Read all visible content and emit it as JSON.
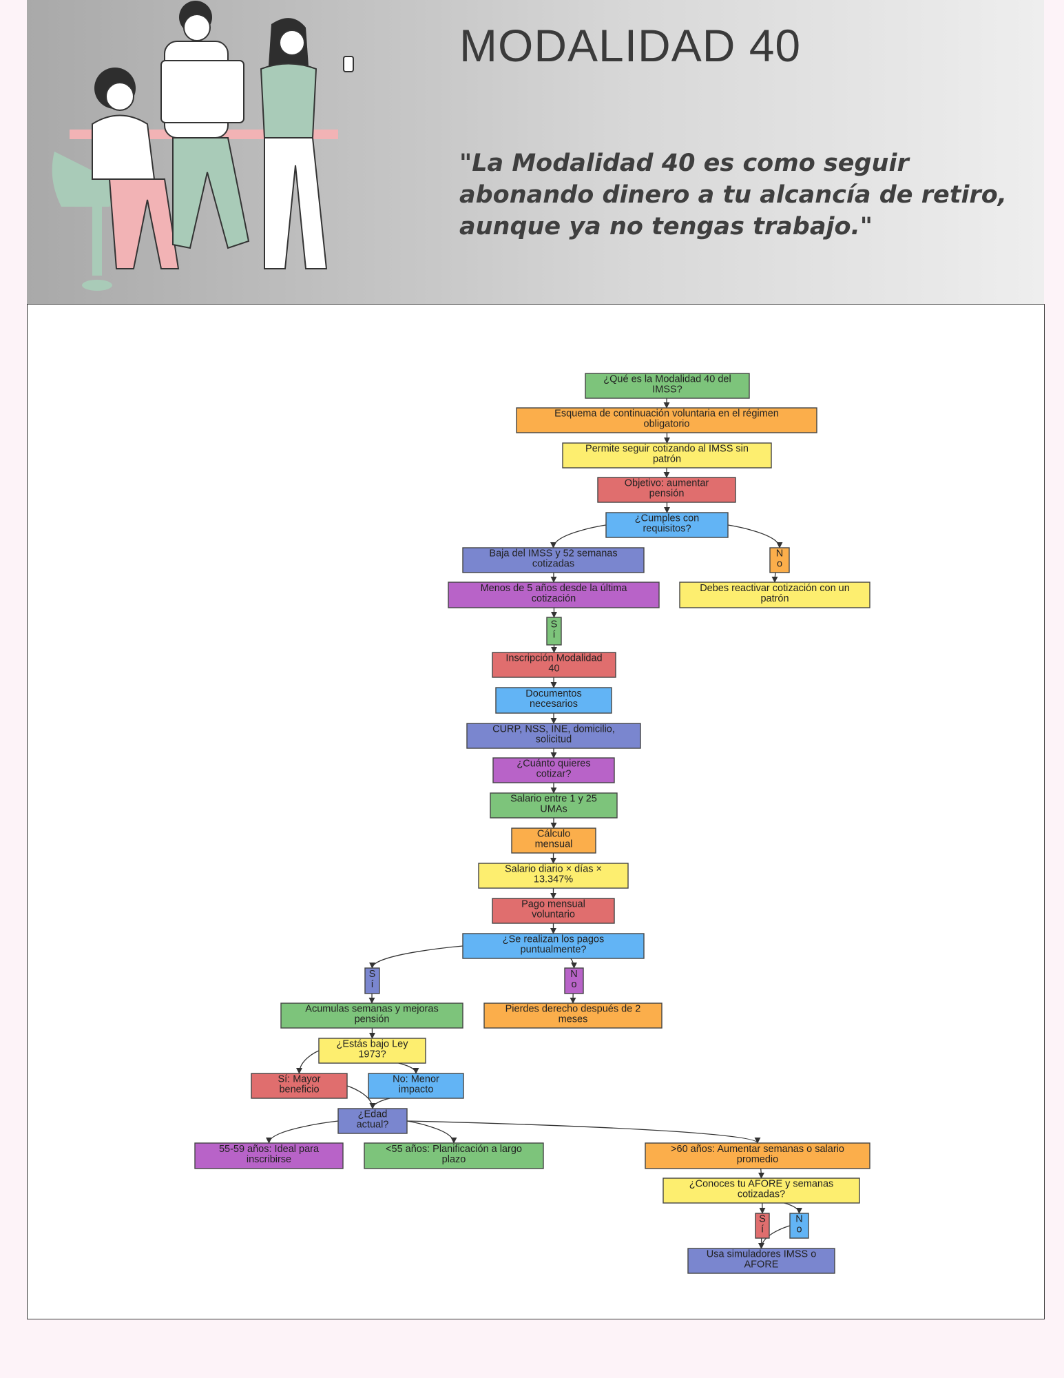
{
  "header": {
    "title": "MODALIDAD 40",
    "quote_lines": [
      "\"La Modalidad 40 es como seguir",
      "abonando dinero a tu alcancía de retiro,",
      " aunque ya no tengas trabajo.\""
    ]
  },
  "colors": {
    "green": "#7dc47b",
    "orange": "#fbae4b",
    "yellow": "#fdee6f",
    "red": "#e06e6e",
    "blue": "#62b4f5",
    "indigo": "#7a86cf",
    "purple": "#b863c8"
  },
  "diagram": {
    "nodes": [
      {
        "id": "n1",
        "color": "green",
        "lines": [
          "¿Qué es la Modalidad 40 del",
          "IMSS?"
        ]
      },
      {
        "id": "n2",
        "color": "orange",
        "lines": [
          "Esquema de continuación voluntaria en el régimen",
          "obligatorio"
        ]
      },
      {
        "id": "n3",
        "color": "yellow",
        "lines": [
          "Permite seguir cotizando al IMSS sin",
          "patrón"
        ]
      },
      {
        "id": "n4",
        "color": "red",
        "lines": [
          "Objetivo: aumentar",
          "pensión"
        ]
      },
      {
        "id": "n5",
        "color": "blue",
        "lines": [
          "¿Cumples con",
          "requisitos?"
        ]
      },
      {
        "id": "n6",
        "color": "indigo",
        "lines": [
          "Baja del IMSS y 52 semanas",
          "cotizadas"
        ]
      },
      {
        "id": "n7",
        "color": "orange",
        "lines": [
          "N",
          "o"
        ]
      },
      {
        "id": "n8",
        "color": "purple",
        "lines": [
          "Menos de 5 años desde la última",
          "cotización"
        ]
      },
      {
        "id": "n9",
        "color": "yellow",
        "lines": [
          "Debes reactivar cotización con un",
          "patrón"
        ]
      },
      {
        "id": "n10",
        "color": "green",
        "lines": [
          "S",
          "í"
        ]
      },
      {
        "id": "n11",
        "color": "red",
        "lines": [
          "Inscripción Modalidad",
          "40"
        ]
      },
      {
        "id": "n12",
        "color": "blue",
        "lines": [
          "Documentos",
          "necesarios"
        ]
      },
      {
        "id": "n13",
        "color": "indigo",
        "lines": [
          "CURP, NSS, INE, domicilio,",
          "solicitud"
        ]
      },
      {
        "id": "n14",
        "color": "purple",
        "lines": [
          "¿Cuánto quieres",
          "cotizar?"
        ]
      },
      {
        "id": "n15",
        "color": "green",
        "lines": [
          "Salario entre 1 y 25",
          "UMAs"
        ]
      },
      {
        "id": "n16",
        "color": "orange",
        "lines": [
          "Cálculo",
          "mensual"
        ]
      },
      {
        "id": "n17",
        "color": "yellow",
        "lines": [
          "Salario diario × días ×",
          "13.347%"
        ]
      },
      {
        "id": "n18",
        "color": "red",
        "lines": [
          "Pago mensual",
          "voluntario"
        ]
      },
      {
        "id": "n19",
        "color": "blue",
        "lines": [
          "¿Se realizan los pagos",
          "puntualmente?"
        ]
      },
      {
        "id": "n20",
        "color": "indigo",
        "lines": [
          "S",
          "í"
        ]
      },
      {
        "id": "n21",
        "color": "purple",
        "lines": [
          "N",
          "o"
        ]
      },
      {
        "id": "n22",
        "color": "green",
        "lines": [
          "Acumulas semanas y mejoras",
          "pensión"
        ]
      },
      {
        "id": "n23",
        "color": "orange",
        "lines": [
          "Pierdes derecho después de 2",
          "meses"
        ]
      },
      {
        "id": "n24",
        "color": "yellow",
        "lines": [
          "¿Estás bajo Ley",
          "1973?"
        ]
      },
      {
        "id": "n25",
        "color": "red",
        "lines": [
          "Sí: Mayor",
          "beneficio"
        ]
      },
      {
        "id": "n26",
        "color": "blue",
        "lines": [
          "No: Menor",
          "impacto"
        ]
      },
      {
        "id": "n27",
        "color": "indigo",
        "lines": [
          "¿Edad",
          "actual?"
        ]
      },
      {
        "id": "n28",
        "color": "purple",
        "lines": [
          "55-59 años: Ideal para",
          "inscribirse"
        ]
      },
      {
        "id": "n29",
        "color": "green",
        "lines": [
          "<55 años: Planificación a largo",
          "plazo"
        ]
      },
      {
        "id": "n30",
        "color": "orange",
        "lines": [
          ">60 años: Aumentar semanas o salario",
          "promedio"
        ]
      },
      {
        "id": "n31",
        "color": "yellow",
        "lines": [
          "¿Conoces tu AFORE y semanas",
          "cotizadas?"
        ]
      },
      {
        "id": "n32",
        "color": "red",
        "lines": [
          "S",
          "í"
        ]
      },
      {
        "id": "n33",
        "color": "blue",
        "lines": [
          "N",
          "o"
        ]
      },
      {
        "id": "n34",
        "color": "indigo",
        "lines": [
          "Usa simuladores IMSS o",
          "AFORE"
        ]
      }
    ],
    "edges": [
      [
        "n1",
        "n2"
      ],
      [
        "n2",
        "n3"
      ],
      [
        "n3",
        "n4"
      ],
      [
        "n4",
        "n5"
      ],
      [
        "n5",
        "n6"
      ],
      [
        "n5",
        "n7"
      ],
      [
        "n6",
        "n8"
      ],
      [
        "n7",
        "n9"
      ],
      [
        "n8",
        "n10"
      ],
      [
        "n10",
        "n11"
      ],
      [
        "n11",
        "n12"
      ],
      [
        "n12",
        "n13"
      ],
      [
        "n13",
        "n14"
      ],
      [
        "n14",
        "n15"
      ],
      [
        "n15",
        "n16"
      ],
      [
        "n16",
        "n17"
      ],
      [
        "n17",
        "n18"
      ],
      [
        "n18",
        "n19"
      ],
      [
        "n19",
        "n20"
      ],
      [
        "n19",
        "n21"
      ],
      [
        "n20",
        "n22"
      ],
      [
        "n21",
        "n23"
      ],
      [
        "n22",
        "n24"
      ],
      [
        "n24",
        "n25"
      ],
      [
        "n24",
        "n26"
      ],
      [
        "n25",
        "n27"
      ],
      [
        "n26",
        "n27"
      ],
      [
        "n27",
        "n28"
      ],
      [
        "n27",
        "n29"
      ],
      [
        "n27",
        "n30"
      ],
      [
        "n30",
        "n31"
      ],
      [
        "n31",
        "n32"
      ],
      [
        "n31",
        "n33"
      ],
      [
        "n32",
        "n34"
      ],
      [
        "n33",
        "n34"
      ]
    ]
  }
}
